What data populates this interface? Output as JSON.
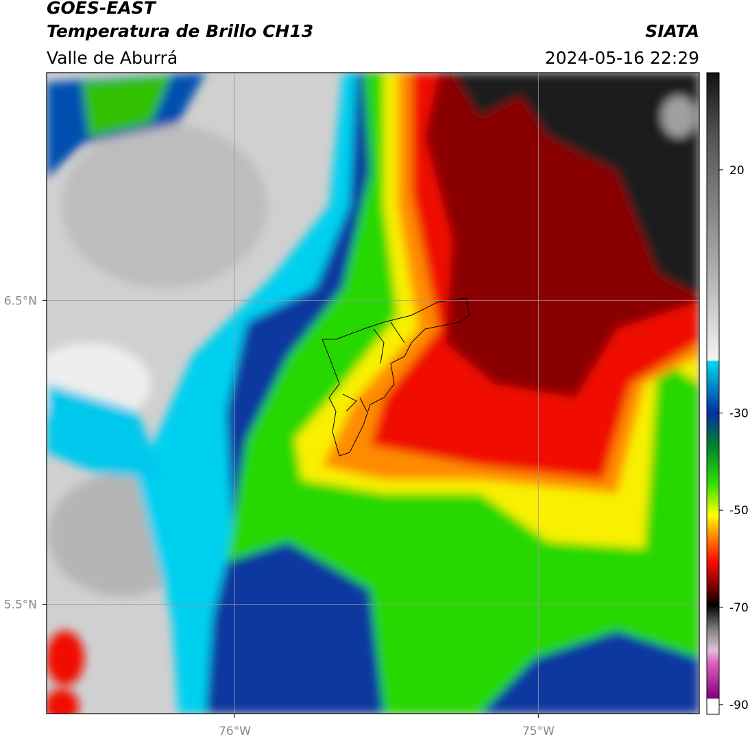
{
  "header": {
    "title": "GOES-EAST",
    "subtitle": "Temperatura de Brillo CH13",
    "region": "Valle de Aburrá",
    "source": "SIATA",
    "datetime": "2024-05-16 22:29"
  },
  "map": {
    "xlim": [
      -76.62,
      -74.47
    ],
    "ylim": [
      5.14,
      7.25
    ],
    "xticks": [
      {
        "value": -76,
        "label": "76°W"
      },
      {
        "value": -75,
        "label": "75°W"
      }
    ],
    "yticks": [
      {
        "value": 6.5,
        "label": "6.5°N"
      },
      {
        "value": 5.5,
        "label": "5.5°N"
      }
    ],
    "grid": true
  },
  "colorbar": {
    "clim": [
      -92,
      40
    ],
    "ticks": [
      20,
      -30,
      -50,
      -70,
      -90
    ]
  }
}
